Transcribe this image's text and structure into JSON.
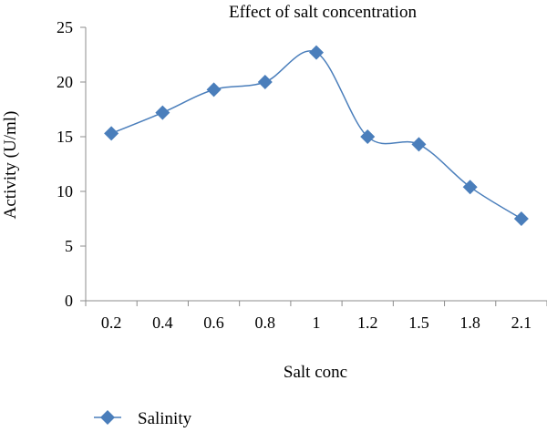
{
  "chart_data": {
    "type": "line",
    "title": "Effect of salt concentration",
    "xlabel": "Salt conc",
    "ylabel": "Activity (U/ml)",
    "categories": [
      "0.2",
      "0.4",
      "0.6",
      "0.8",
      "1",
      "1.2",
      "1.5",
      "1.8",
      "2.1"
    ],
    "series": [
      {
        "name": "Salinity",
        "values": [
          15.3,
          17.2,
          19.3,
          20.0,
          22.7,
          15.0,
          14.3,
          10.4,
          7.5
        ],
        "color": "#4a7ebb",
        "marker": "diamond",
        "smooth": true
      }
    ],
    "ylim": [
      0,
      25
    ],
    "yticks": [
      0,
      5,
      10,
      15,
      20,
      25
    ],
    "grid": false,
    "legend_position": "bottom-left"
  }
}
